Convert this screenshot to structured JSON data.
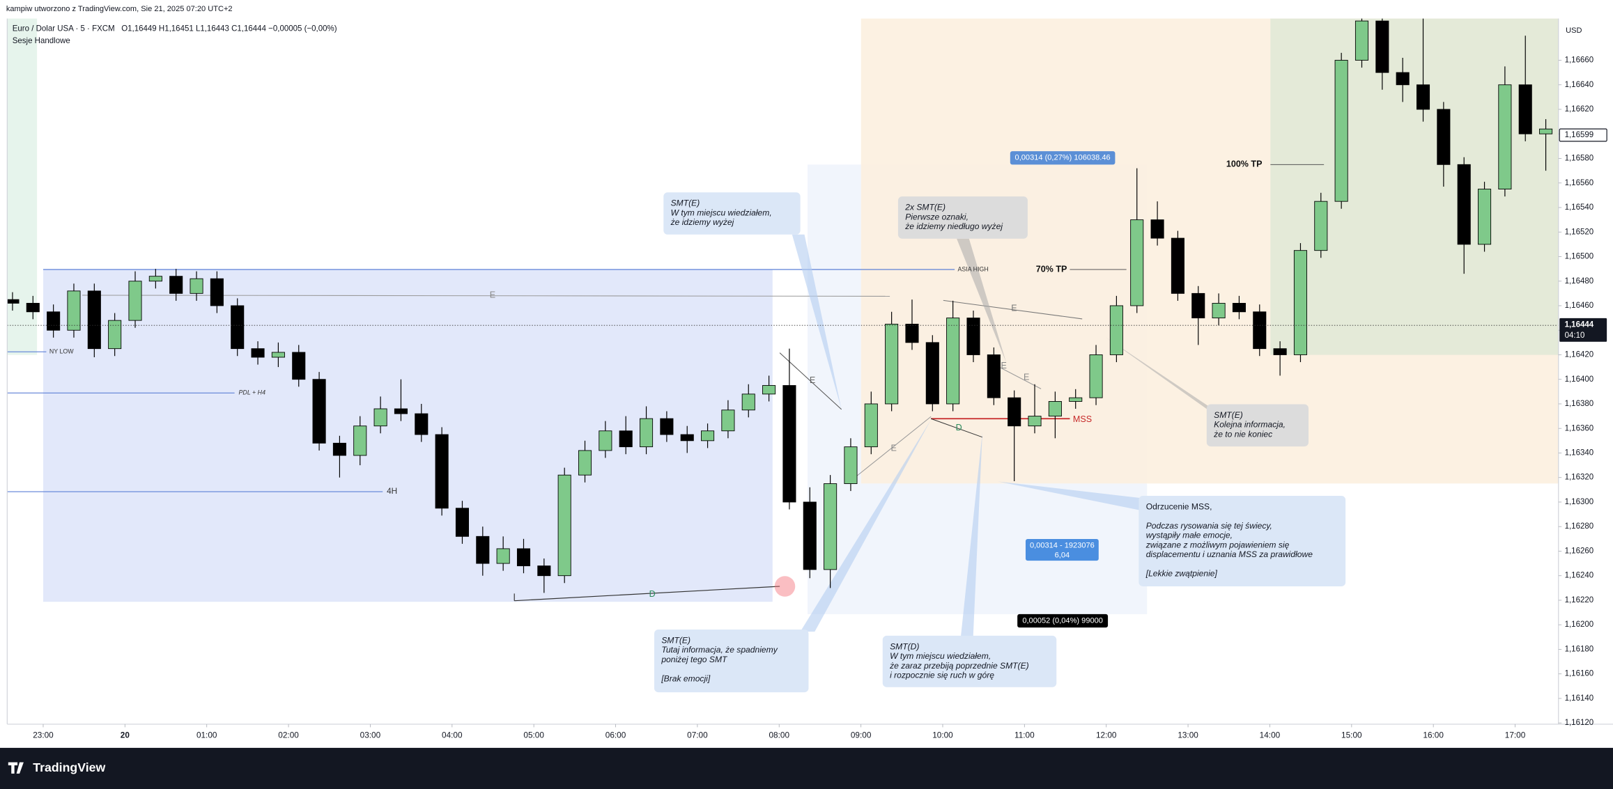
{
  "header": {
    "title": "kampiw utworzono z TradingView.com, Sie 21, 2025 07:20 UTC+2"
  },
  "legend": {
    "symbol": "Euro / Dolar USA · 5 · FXCM",
    "ohlc": "O1,16449 H1,16451 L1,16443 C1,16444 −0,00005 (−0,00%)",
    "indicator": "Sesje Handlowe"
  },
  "footer": {
    "logo": "TradingView"
  },
  "chart_data": {
    "type": "candlestick",
    "currency": "USD",
    "x": [
      -0.375,
      -0.125,
      0.125,
      0.375,
      0.625,
      0.875,
      1.125,
      1.375,
      1.625,
      1.875,
      2.125,
      2.375,
      2.625,
      2.875,
      3.125,
      3.375,
      3.625,
      3.875,
      4.125,
      4.375,
      4.625,
      4.875,
      5.125,
      5.375,
      5.625,
      5.875,
      6.125,
      6.375,
      6.625,
      6.875,
      7.125,
      7.375,
      7.625,
      7.875,
      8.125,
      8.375,
      8.625,
      8.875,
      9.125,
      9.375,
      9.625,
      9.875,
      10.125,
      10.375,
      10.625,
      10.875,
      11.125,
      11.375,
      11.625,
      11.875,
      12.125,
      12.375,
      12.625,
      12.875,
      13.125,
      13.375,
      13.625,
      13.875,
      14.125,
      14.375,
      14.625,
      14.875,
      15.125,
      15.375,
      15.625,
      15.875,
      16.125,
      16.375,
      16.625,
      16.875,
      17.125,
      17.375,
      17.625,
      17.875,
      18.125,
      18.375
    ],
    "open": [
      1.16465,
      1.16462,
      1.16455,
      1.1644,
      1.16472,
      1.16425,
      1.16448,
      1.1648,
      1.16484,
      1.1647,
      1.16482,
      1.1646,
      1.16425,
      1.16418,
      1.16422,
      1.164,
      1.16348,
      1.16338,
      1.16362,
      1.16376,
      1.16372,
      1.16355,
      1.16295,
      1.16272,
      1.1625,
      1.16262,
      1.16248,
      1.1624,
      1.16322,
      1.16342,
      1.16358,
      1.16345,
      1.16368,
      1.16355,
      1.1635,
      1.16358,
      1.16375,
      1.16388,
      1.16395,
      1.163,
      1.16245,
      1.16315,
      1.16345,
      1.1638,
      1.16445,
      1.1643,
      1.1638,
      1.1645,
      1.1642,
      1.16385,
      1.16362,
      1.1637,
      1.16382,
      1.16385,
      1.1642,
      1.1646,
      1.1653,
      1.16515,
      1.1647,
      1.1645,
      1.16462,
      1.16455,
      1.16425,
      1.1642,
      1.16505,
      1.16545,
      1.1666,
      1.16692,
      1.1665,
      1.1664,
      1.1662,
      1.16575,
      1.1651,
      1.16555,
      1.1664,
      1.166
    ],
    "high": [
      1.16471,
      1.16468,
      1.16461,
      1.16478,
      1.16478,
      1.16454,
      1.16488,
      1.1649,
      1.1649,
      1.16488,
      1.16488,
      1.16466,
      1.16431,
      1.1643,
      1.16428,
      1.16406,
      1.16354,
      1.1637,
      1.16386,
      1.164,
      1.1638,
      1.16361,
      1.16301,
      1.1628,
      1.16272,
      1.1627,
      1.16254,
      1.16328,
      1.1635,
      1.16366,
      1.1637,
      1.16378,
      1.16374,
      1.16362,
      1.16364,
      1.16383,
      1.16396,
      1.16403,
      1.16425,
      1.16312,
      1.16322,
      1.16352,
      1.1639,
      1.16455,
      1.16465,
      1.16436,
      1.16464,
      1.16456,
      1.16426,
      1.16391,
      1.16396,
      1.1639,
      1.16392,
      1.16428,
      1.16468,
      1.16572,
      1.16545,
      1.16521,
      1.16476,
      1.1647,
      1.16468,
      1.16461,
      1.16431,
      1.16511,
      1.16552,
      1.16666,
      1.16694,
      1.16694,
      1.16662,
      1.16694,
      1.16626,
      1.16581,
      1.16561,
      1.16655,
      1.1668,
      1.16612
    ],
    "low": [
      1.16456,
      1.16449,
      1.16434,
      1.16434,
      1.16418,
      1.16419,
      1.16442,
      1.16474,
      1.16464,
      1.16464,
      1.16454,
      1.16419,
      1.16412,
      1.1641,
      1.16394,
      1.16342,
      1.1632,
      1.1633,
      1.16356,
      1.16366,
      1.16349,
      1.16289,
      1.16266,
      1.1624,
      1.16244,
      1.16242,
      1.16226,
      1.16234,
      1.16316,
      1.16336,
      1.16339,
      1.16339,
      1.16349,
      1.1634,
      1.16344,
      1.16352,
      1.16369,
      1.16382,
      1.16294,
      1.16238,
      1.1623,
      1.16309,
      1.16339,
      1.16374,
      1.16424,
      1.16374,
      1.16374,
      1.16414,
      1.16379,
      1.16317,
      1.16356,
      1.16352,
      1.16376,
      1.16379,
      1.16414,
      1.16454,
      1.16509,
      1.16464,
      1.16428,
      1.16444,
      1.16449,
      1.16419,
      1.16403,
      1.16414,
      1.16499,
      1.16539,
      1.16654,
      1.16636,
      1.16626,
      1.1661,
      1.16557,
      1.16486,
      1.16504,
      1.16549,
      1.16594,
      1.1657
    ],
    "close": [
      1.16462,
      1.16455,
      1.1644,
      1.16472,
      1.16425,
      1.16448,
      1.1648,
      1.16484,
      1.1647,
      1.16482,
      1.1646,
      1.16425,
      1.16418,
      1.16422,
      1.164,
      1.16348,
      1.16338,
      1.16362,
      1.16376,
      1.16372,
      1.16355,
      1.16295,
      1.16272,
      1.1625,
      1.16262,
      1.16248,
      1.1624,
      1.16322,
      1.16342,
      1.16358,
      1.16345,
      1.16368,
      1.16355,
      1.1635,
      1.16358,
      1.16375,
      1.16388,
      1.16395,
      1.163,
      1.16245,
      1.16315,
      1.16345,
      1.1638,
      1.16445,
      1.1643,
      1.1638,
      1.1645,
      1.1642,
      1.16385,
      1.16362,
      1.1637,
      1.16382,
      1.16385,
      1.1642,
      1.1646,
      1.1653,
      1.16515,
      1.1647,
      1.1645,
      1.16462,
      1.16455,
      1.16425,
      1.1642,
      1.16505,
      1.16545,
      1.1666,
      1.16692,
      1.1665,
      1.1664,
      1.1662,
      1.16575,
      1.1651,
      1.16555,
      1.1664,
      1.166,
      1.16604
    ],
    "up_color": "#7fc98a",
    "down_color": "#000000",
    "xlim": [
      -0.44,
      18.53
    ],
    "ylim": [
      1.16119,
      1.16694
    ],
    "xticks": [
      {
        "value": 0,
        "label": "23:00"
      },
      {
        "value": 1,
        "label": "20"
      },
      {
        "value": 2,
        "label": "01:00"
      },
      {
        "value": 3,
        "label": "02:00"
      },
      {
        "value": 4,
        "label": "03:00"
      },
      {
        "value": 5,
        "label": "04:00"
      },
      {
        "value": 6,
        "label": "05:00"
      },
      {
        "value": 7,
        "label": "06:00"
      },
      {
        "value": 8,
        "label": "07:00"
      },
      {
        "value": 9,
        "label": "08:00"
      },
      {
        "value": 10,
        "label": "09:00"
      },
      {
        "value": 11,
        "label": "10:00"
      },
      {
        "value": 12,
        "label": "11:00"
      },
      {
        "value": 13,
        "label": "12:00"
      },
      {
        "value": 14,
        "label": "13:00"
      },
      {
        "value": 15,
        "label": "14:00"
      },
      {
        "value": 16,
        "label": "15:00"
      },
      {
        "value": 17,
        "label": "16:00"
      },
      {
        "value": 18,
        "label": "17:00"
      }
    ],
    "yticks": [
      {
        "value": 1.1666,
        "label": "1,16660"
      },
      {
        "value": 1.1664,
        "label": "1,16640"
      },
      {
        "value": 1.1662,
        "label": "1,16620"
      },
      {
        "value": 1.166,
        "label": "1,16600"
      },
      {
        "value": 1.1658,
        "label": "1,16580"
      },
      {
        "value": 1.1656,
        "label": "1,16560"
      },
      {
        "value": 1.1654,
        "label": "1,16540"
      },
      {
        "value": 1.1652,
        "label": "1,16520"
      },
      {
        "value": 1.165,
        "label": "1,16500"
      },
      {
        "value": 1.1648,
        "label": "1,16480"
      },
      {
        "value": 1.1646,
        "label": "1,16460"
      },
      {
        "value": 1.1644,
        "label": "1,16440"
      },
      {
        "value": 1.1642,
        "label": "1,16420"
      },
      {
        "value": 1.164,
        "label": "1,16400"
      },
      {
        "value": 1.1638,
        "label": "1,16380"
      },
      {
        "value": 1.1636,
        "label": "1,16360"
      },
      {
        "value": 1.1634,
        "label": "1,16340"
      },
      {
        "value": 1.1632,
        "label": "1,16320"
      },
      {
        "value": 1.163,
        "label": "1,16300"
      },
      {
        "value": 1.1628,
        "label": "1,16280"
      },
      {
        "value": 1.1626,
        "label": "1,16260"
      },
      {
        "value": 1.1624,
        "label": "1,16240"
      },
      {
        "value": 1.1622,
        "label": "1,16220"
      },
      {
        "value": 1.162,
        "label": "1,16200"
      },
      {
        "value": 1.1618,
        "label": "1,16180"
      },
      {
        "value": 1.1616,
        "label": "1,16160"
      },
      {
        "value": 1.1614,
        "label": "1,16140"
      },
      {
        "value": 1.1612,
        "label": "1,16120"
      }
    ],
    "grid": false,
    "last_price": {
      "value": 1.16444,
      "label": "1,16444"
    },
    "countdown": "04:10",
    "price_tag": {
      "value": 1.16599,
      "label": "1,16599"
    },
    "labels": [
      "ASIA HIGH",
      "NY LOW",
      "PDL + H4",
      "4H",
      "E",
      "D",
      "E",
      "E",
      "MSS",
      "D",
      "E",
      "E",
      "E",
      "70% TP",
      "100% TP"
    ],
    "measures": [
      [
        "0,00314 (0,27%) 106038.46"
      ],
      [
        "0,00314 - 1923076",
        "6,04"
      ],
      [
        "0,00052 (0,04%) 99000"
      ]
    ],
    "callouts": [
      {
        "paragraphs": [
          [
            "SMT(E)",
            "W tym miejscu wiedziałem,",
            "że idziemy wyżej"
          ]
        ]
      },
      {
        "paragraphs": [
          [
            "2x SMT(E)",
            "Pierwsze oznaki,",
            "że idziemy niedługo wyżej"
          ]
        ]
      },
      {
        "paragraphs": [
          [
            "SMT(E)",
            "Kolejna informacja,",
            "że to nie koniec"
          ]
        ]
      },
      {
        "paragraphs": [
          [
            "Odrzucenie MSS,"
          ],
          [
            "Podczas rysowania się tej świecy,",
            "wystąpiły małe emocje,",
            "związane z możliwym pojawieniem się",
            "displacementu i uznania MSS za prawidłowe"
          ],
          [
            "[Lekkie zwątpienie]"
          ]
        ]
      },
      {
        "paragraphs": [
          [
            "SMT(E)",
            "Tutaj informacja, że spadniemy",
            "poniżej tego SMT"
          ],
          [
            "[Brak emocji]"
          ]
        ]
      },
      {
        "paragraphs": [
          [
            "SMT(D)",
            "W tym miejscu wiedziałem,",
            "że zaraz przebiją poprzednie SMT(E)",
            "i rozpocznie się ruch w górę"
          ]
        ]
      }
    ]
  }
}
